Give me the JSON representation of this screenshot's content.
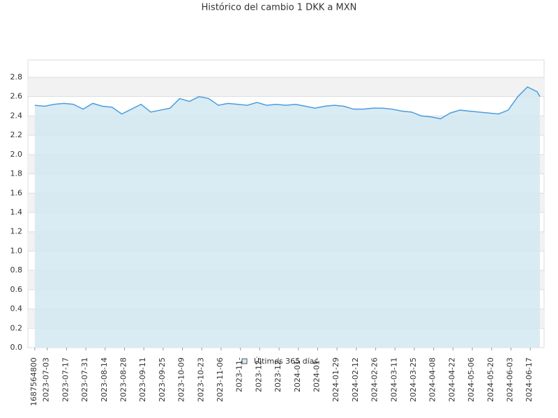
{
  "chart_data": {
    "type": "area",
    "title": "Histórico del cambio 1 DKK a MXN",
    "x": [
      "2023-06-24",
      "2023-07-01",
      "2023-07-08",
      "2023-07-15",
      "2023-07-22",
      "2023-07-29",
      "2023-08-05",
      "2023-08-12",
      "2023-08-19",
      "2023-08-26",
      "2023-09-02",
      "2023-09-09",
      "2023-09-16",
      "2023-09-23",
      "2023-09-30",
      "2023-10-07",
      "2023-10-14",
      "2023-10-21",
      "2023-10-28",
      "2023-11-04",
      "2023-11-11",
      "2023-11-18",
      "2023-11-25",
      "2023-12-02",
      "2023-12-09",
      "2023-12-16",
      "2023-12-23",
      "2023-12-30",
      "2024-01-06",
      "2024-01-13",
      "2024-01-20",
      "2024-01-27",
      "2024-02-03",
      "2024-02-10",
      "2024-02-17",
      "2024-02-24",
      "2024-03-02",
      "2024-03-09",
      "2024-03-16",
      "2024-03-23",
      "2024-03-30",
      "2024-04-06",
      "2024-04-13",
      "2024-04-20",
      "2024-04-27",
      "2024-05-04",
      "2024-05-11",
      "2024-05-18",
      "2024-05-25",
      "2024-06-01",
      "2024-06-08",
      "2024-06-15",
      "2024-06-22",
      "2024-06-24"
    ],
    "series": [
      {
        "name": "Últimos 365 días",
        "color": "#4a9de0",
        "fill": "#d4e9f1",
        "values": [
          2.51,
          2.5,
          2.52,
          2.53,
          2.52,
          2.47,
          2.53,
          2.5,
          2.49,
          2.42,
          2.47,
          2.52,
          2.44,
          2.46,
          2.48,
          2.58,
          2.55,
          2.6,
          2.58,
          2.51,
          2.53,
          2.52,
          2.51,
          2.54,
          2.51,
          2.52,
          2.51,
          2.52,
          2.5,
          2.48,
          2.5,
          2.51,
          2.5,
          2.47,
          2.47,
          2.48,
          2.48,
          2.47,
          2.45,
          2.44,
          2.4,
          2.39,
          2.37,
          2.43,
          2.46,
          2.45,
          2.44,
          2.43,
          2.42,
          2.46,
          2.6,
          2.7,
          2.65,
          2.6
        ]
      }
    ],
    "xlim": [
      "2023-06-19",
      "2024-06-27"
    ],
    "xticks": [
      {
        "value": "2023-06-24",
        "label": "1687564800"
      },
      "2023-07-03",
      "2023-07-17",
      "2023-07-31",
      "2023-08-14",
      "2023-08-28",
      "2023-09-11",
      "2023-09-25",
      "2023-10-09",
      "2023-10-23",
      "2023-11-06",
      {
        "value": "2023-11-20",
        "label": "2023-11-"
      },
      {
        "value": "2023-12-04",
        "label": "2023-12-"
      },
      {
        "value": "2023-12-18",
        "label": "2023-12-"
      },
      {
        "value": "2024-01-01",
        "label": "2024-01-"
      },
      {
        "value": "2024-01-15",
        "label": "2024-01-"
      },
      "2024-01-29",
      "2024-02-12",
      "2024-02-26",
      "2024-03-11",
      "2024-03-25",
      "2024-04-08",
      "2024-04-22",
      "2024-05-06",
      "2024-05-20",
      "2024-06-03",
      "2024-06-17"
    ],
    "ylim": [
      0,
      2.98
    ],
    "yticks": [
      {
        "value": 0,
        "label": "0.0"
      },
      0.2,
      0.4,
      0.6,
      0.8,
      {
        "value": 1,
        "label": "1.0"
      },
      1.2,
      1.4,
      1.6,
      1.8,
      {
        "value": 2,
        "label": "2.0"
      },
      2.2,
      2.4,
      2.6,
      2.8
    ],
    "grid": true,
    "legend": "bottom"
  }
}
